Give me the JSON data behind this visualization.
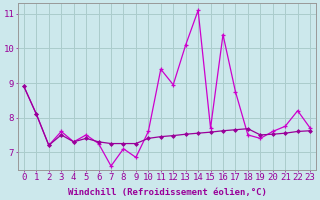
{
  "xlabel": "Windchill (Refroidissement éolien,°C)",
  "bg_color": "#cce8ec",
  "grid_color": "#aacccc",
  "line_color1": "#990099",
  "line_color2": "#cc00cc",
  "x_data": [
    0,
    1,
    2,
    3,
    4,
    5,
    6,
    7,
    8,
    9,
    10,
    11,
    12,
    13,
    14,
    15,
    16,
    17,
    18,
    19,
    20,
    21,
    22,
    23
  ],
  "y_spiky": [
    8.9,
    8.1,
    7.2,
    7.6,
    7.3,
    7.5,
    7.25,
    6.6,
    7.1,
    6.85,
    7.6,
    9.4,
    8.95,
    10.1,
    11.1,
    7.7,
    10.4,
    8.75,
    7.5,
    7.4,
    7.6,
    7.75,
    8.2,
    7.7
  ],
  "y_smooth": [
    8.9,
    8.1,
    7.2,
    7.5,
    7.3,
    7.4,
    7.3,
    7.25,
    7.25,
    7.25,
    7.4,
    7.45,
    7.48,
    7.52,
    7.55,
    7.58,
    7.62,
    7.65,
    7.68,
    7.5,
    7.52,
    7.55,
    7.6,
    7.62
  ],
  "ylim": [
    6.5,
    11.3
  ],
  "xlim": [
    -0.5,
    23.5
  ],
  "yticks": [
    7,
    8,
    9,
    10,
    11
  ],
  "xticks": [
    0,
    1,
    2,
    3,
    4,
    5,
    6,
    7,
    8,
    9,
    10,
    11,
    12,
    13,
    14,
    15,
    16,
    17,
    18,
    19,
    20,
    21,
    22,
    23
  ],
  "xlabel_fontsize": 6.5,
  "tick_fontsize": 6.5
}
